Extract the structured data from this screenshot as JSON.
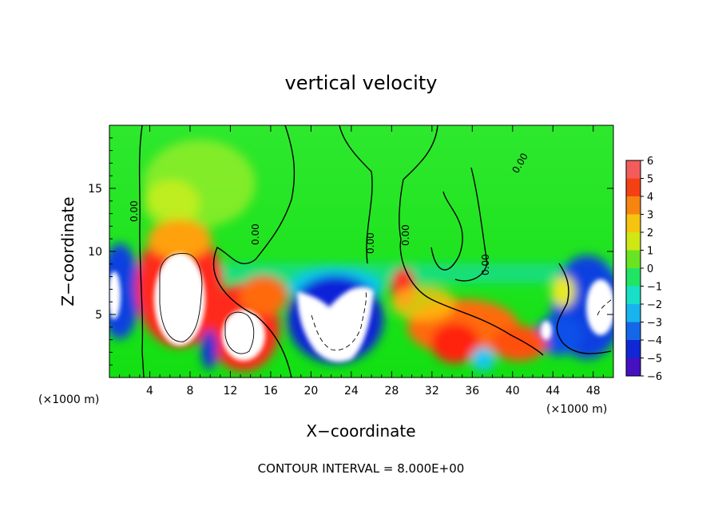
{
  "chart_data": {
    "type": "heatmap",
    "title": "vertical velocity",
    "xlabel": "X−coordinate",
    "ylabel": "Z−coordinate",
    "x_unit": "(×1000 m)",
    "y_unit": "(×1000 m)",
    "xlim": [
      0,
      50
    ],
    "ylim": [
      0,
      20
    ],
    "x_ticks": [
      4,
      8,
      12,
      16,
      20,
      24,
      28,
      32,
      36,
      40,
      44,
      48
    ],
    "y_ticks": [
      5,
      10,
      15
    ],
    "colorbar": {
      "min": -6,
      "max": 6,
      "ticks": [
        "6",
        "5",
        "4",
        "3",
        "2",
        "1",
        "0",
        "−1",
        "−2",
        "−3",
        "−4",
        "−5",
        "−6"
      ]
    },
    "contour_interval_text": "CONTOUR INTERVAL = 8.000E+00",
    "contour_labels": [
      "0.00",
      "0.00",
      "0.00",
      "0.00",
      "0.00",
      "0.00"
    ],
    "features": [
      {
        "kind": "updraft",
        "x": 7,
        "z": 6.5,
        "peak": 8
      },
      {
        "kind": "updraft",
        "x": 13,
        "z": 3.5,
        "peak": 7
      },
      {
        "kind": "downdraft",
        "x": 22,
        "z": 5,
        "peak": -8
      },
      {
        "kind": "downdraft",
        "x": 48,
        "z": 6,
        "peak": -7
      },
      {
        "kind": "updraft",
        "x": 35,
        "z": 3,
        "peak": 5
      }
    ]
  }
}
